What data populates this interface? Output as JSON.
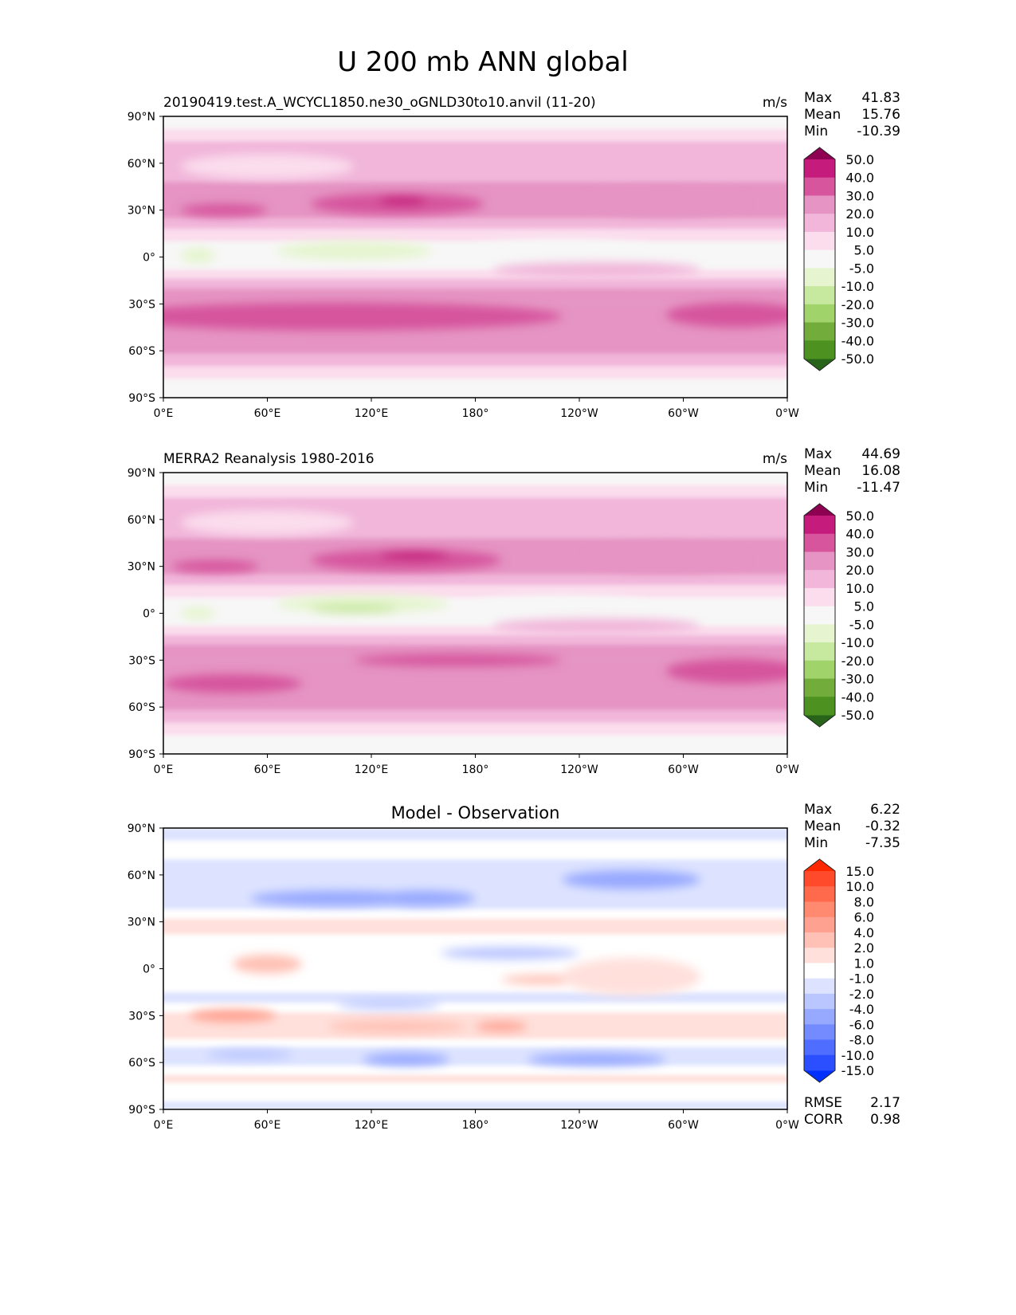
{
  "chart_data": {
    "type": "heatmap",
    "title": "U 200 mb ANN global",
    "xticks": {
      "values": [
        0,
        60,
        120,
        180,
        240,
        300,
        360
      ],
      "labels": [
        "0°E",
        "60°E",
        "120°E",
        "180°",
        "120°W",
        "60°W",
        "0°W"
      ]
    },
    "yticks": {
      "values": [
        90,
        60,
        30,
        0,
        -30,
        -60,
        -90
      ],
      "labels": [
        "90°N",
        "60°N",
        "30°N",
        "0°",
        "30°S",
        "60°S",
        "90°S"
      ]
    },
    "panels": [
      {
        "title_left": "20190419.test.A_WCYCL1850.ne30_oGNLD30to10.anvil (11-20)",
        "title_center": "",
        "units": "m/s",
        "stats": [
          {
            "label": "Max",
            "value": "41.83"
          },
          {
            "label": "Mean",
            "value": "15.76"
          },
          {
            "label": "Min",
            "value": "-10.39"
          }
        ],
        "levels": [
          -50,
          -40,
          -30,
          -20,
          -10,
          -5,
          5,
          10,
          20,
          30,
          40,
          50
        ],
        "level_labels": [
          "-50.0",
          "-40.0",
          "-30.0",
          "-20.0",
          "-10.0",
          "-5.0",
          "5.0",
          "10.0",
          "20.0",
          "30.0",
          "40.0",
          "50.0"
        ],
        "colors": [
          "#276419",
          "#4d9221",
          "#72ac3a",
          "#a0d36a",
          "#c7e89f",
          "#e6f5d0",
          "#f7f7f7",
          "#fbdded",
          "#f1b6da",
          "#e594c3",
          "#d6559d",
          "#c51b7d",
          "#8e0152"
        ],
        "zonal_bands": [
          [
            90,
            82,
            0
          ],
          [
            82,
            74,
            7
          ],
          [
            74,
            48,
            15
          ],
          [
            48,
            25,
            25
          ],
          [
            25,
            18,
            15
          ],
          [
            18,
            10,
            7
          ],
          [
            10,
            -8,
            0
          ],
          [
            -8,
            -14,
            7
          ],
          [
            -14,
            -20,
            15
          ],
          [
            -20,
            -30,
            25
          ],
          [
            -30,
            -50,
            25
          ],
          [
            -50,
            -62,
            25
          ],
          [
            -62,
            -70,
            15
          ],
          [
            -70,
            -78,
            7
          ],
          [
            -78,
            -90,
            0
          ]
        ],
        "features": [
          [
            135,
            34,
            50,
            7,
            35
          ],
          [
            138,
            36,
            14,
            3,
            45
          ],
          [
            35,
            30,
            25,
            4,
            35
          ],
          [
            290,
            35,
            45,
            9,
            25
          ],
          [
            100,
            -38,
            130,
            9,
            35
          ],
          [
            330,
            -37,
            40,
            8,
            35
          ],
          [
            110,
            4,
            45,
            6,
            -7
          ],
          [
            20,
            1,
            10,
            5,
            -7
          ],
          [
            230,
            4,
            50,
            7,
            0
          ],
          [
            250,
            -8,
            60,
            5,
            15
          ],
          [
            60,
            58,
            50,
            8,
            7
          ]
        ]
      },
      {
        "title_left": "MERRA2 Reanalysis 1980-2016",
        "title_center": "",
        "units": "m/s",
        "stats": [
          {
            "label": "Max",
            "value": "44.69"
          },
          {
            "label": "Mean",
            "value": "16.08"
          },
          {
            "label": "Min",
            "value": "-11.47"
          }
        ],
        "levels": [
          -50,
          -40,
          -30,
          -20,
          -10,
          -5,
          5,
          10,
          20,
          30,
          40,
          50
        ],
        "level_labels": [
          "-50.0",
          "-40.0",
          "-30.0",
          "-20.0",
          "-10.0",
          "-5.0",
          "5.0",
          "10.0",
          "20.0",
          "30.0",
          "40.0",
          "50.0"
        ],
        "colors": [
          "#276419",
          "#4d9221",
          "#72ac3a",
          "#a0d36a",
          "#c7e89f",
          "#e6f5d0",
          "#f7f7f7",
          "#fbdded",
          "#f1b6da",
          "#e594c3",
          "#d6559d",
          "#c51b7d",
          "#8e0152"
        ],
        "zonal_bands": [
          [
            90,
            82,
            0
          ],
          [
            82,
            74,
            7
          ],
          [
            74,
            48,
            15
          ],
          [
            48,
            25,
            25
          ],
          [
            25,
            18,
            15
          ],
          [
            18,
            10,
            7
          ],
          [
            10,
            -8,
            0
          ],
          [
            -8,
            -14,
            7
          ],
          [
            -14,
            -20,
            15
          ],
          [
            -20,
            -30,
            25
          ],
          [
            -30,
            -50,
            25
          ],
          [
            -50,
            -62,
            25
          ],
          [
            -62,
            -70,
            15
          ],
          [
            -70,
            -78,
            7
          ],
          [
            -78,
            -90,
            0
          ]
        ],
        "features": [
          [
            140,
            34,
            55,
            7,
            35
          ],
          [
            145,
            37,
            20,
            3,
            45
          ],
          [
            30,
            30,
            25,
            4,
            35
          ],
          [
            290,
            35,
            45,
            9,
            25
          ],
          [
            170,
            -30,
            60,
            4,
            35
          ],
          [
            40,
            -45,
            40,
            6,
            35
          ],
          [
            330,
            -37,
            40,
            8,
            35
          ],
          [
            115,
            6,
            50,
            6,
            -7
          ],
          [
            110,
            3,
            25,
            3,
            -15
          ],
          [
            20,
            0,
            10,
            4,
            -7
          ],
          [
            230,
            4,
            50,
            7,
            0
          ],
          [
            250,
            -8,
            60,
            5,
            15
          ],
          [
            60,
            58,
            50,
            8,
            7
          ]
        ]
      },
      {
        "title_left": "",
        "title_center": "Model - Observation",
        "units": "",
        "stats": [
          {
            "label": "Max",
            "value": "6.22"
          },
          {
            "label": "Mean",
            "value": "-0.32"
          },
          {
            "label": "Min",
            "value": "-7.35"
          }
        ],
        "levels": [
          -15,
          -10,
          -8,
          -6,
          -4,
          -2,
          -1,
          1,
          2,
          4,
          6,
          8,
          10,
          15
        ],
        "level_labels": [
          "-15.0",
          "-10.0",
          "-8.0",
          "-6.0",
          "-4.0",
          "-2.0",
          "-1.0",
          "1.0",
          "2.0",
          "4.0",
          "6.0",
          "8.0",
          "10.0",
          "15.0"
        ],
        "colors": [
          "#0030ff",
          "#2b4fff",
          "#4f6dff",
          "#738bff",
          "#97a9ff",
          "#bac6ff",
          "#dde3ff",
          "#ffffff",
          "#ffe0db",
          "#ffc1b5",
          "#ffa190",
          "#ff8a70",
          "#ff6a4c",
          "#ff4a2b",
          "#ff2800"
        ],
        "zonal_bands": [
          [
            90,
            82,
            -1.5
          ],
          [
            82,
            70,
            0
          ],
          [
            70,
            38,
            -1.5
          ],
          [
            38,
            32,
            0
          ],
          [
            32,
            22,
            1.5
          ],
          [
            22,
            -15,
            0
          ],
          [
            -15,
            -22,
            -1.5
          ],
          [
            -22,
            -28,
            0
          ],
          [
            -28,
            -45,
            1.5
          ],
          [
            -45,
            -50,
            0
          ],
          [
            -50,
            -62,
            -1.5
          ],
          [
            -62,
            -68,
            0
          ],
          [
            -68,
            -73,
            1.5
          ],
          [
            -73,
            -85,
            0
          ],
          [
            -85,
            -90,
            -1.5
          ]
        ],
        "features": [
          [
            100,
            45,
            50,
            5,
            -5
          ],
          [
            150,
            45,
            30,
            5,
            -5
          ],
          [
            270,
            57,
            40,
            6,
            -5
          ],
          [
            40,
            -30,
            25,
            4,
            5
          ],
          [
            135,
            -37,
            40,
            4,
            3
          ],
          [
            140,
            -58,
            25,
            4,
            -5
          ],
          [
            250,
            -58,
            40,
            4,
            -5
          ],
          [
            50,
            -55,
            25,
            3,
            -3
          ],
          [
            200,
            10,
            40,
            4,
            -3
          ],
          [
            220,
            -7,
            25,
            3,
            3
          ],
          [
            60,
            3,
            20,
            6,
            3
          ],
          [
            130,
            -23,
            30,
            3,
            -3
          ],
          [
            270,
            -5,
            40,
            12,
            1.5
          ],
          [
            195,
            -37,
            15,
            3,
            5
          ]
        ],
        "rmse": {
          "label": "RMSE",
          "value": "2.17"
        },
        "corr": {
          "label": "CORR",
          "value": "0.98"
        }
      }
    ]
  }
}
